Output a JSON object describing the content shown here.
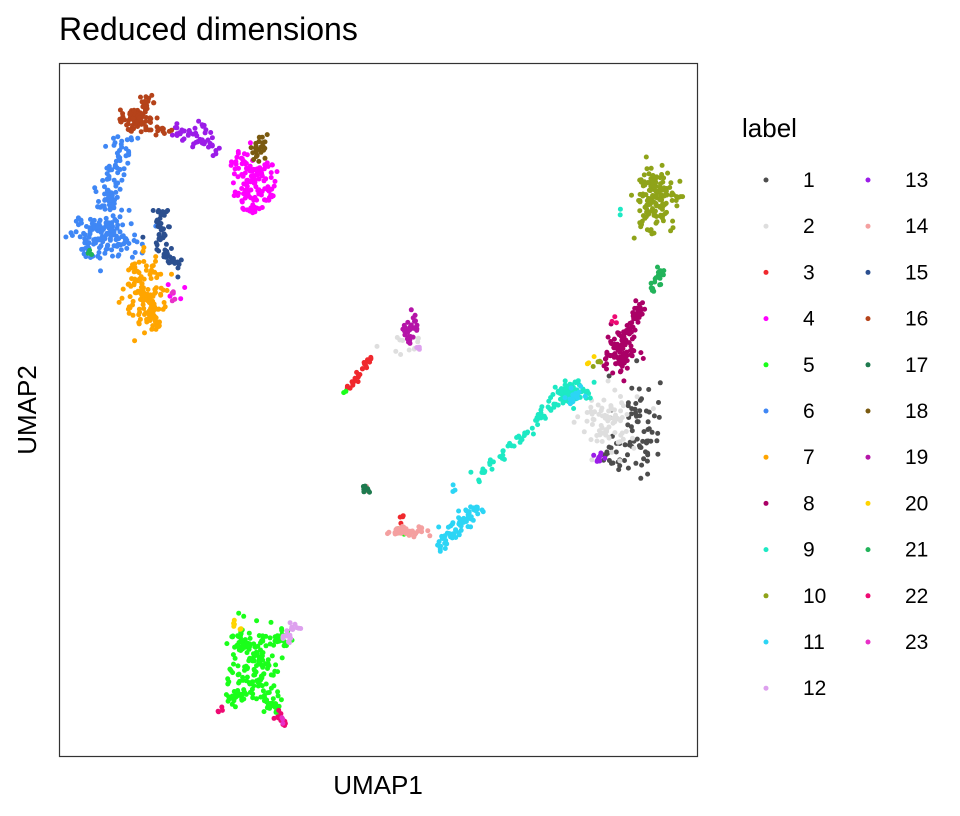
{
  "chart_data": {
    "type": "scatter",
    "title": "Reduced dimensions",
    "xlabel": "UMAP1",
    "ylabel": "UMAP2",
    "xlim": [
      0,
      100
    ],
    "ylim": [
      0,
      100
    ],
    "x_ticks_shown": false,
    "y_ticks_shown": false,
    "grid": false,
    "legend_title": "label",
    "legend_position": "right",
    "point_size": "small",
    "series": [
      {
        "name": "1",
        "color": "#4d4d4d",
        "clusters": [
          {
            "cx": 90.5,
            "cy": 47.5,
            "sx": 1.8,
            "sy": 3.8,
            "n": 70
          },
          {
            "cx": 86.5,
            "cy": 43.5,
            "sx": 1.0,
            "sy": 1.5,
            "n": 15
          }
        ]
      },
      {
        "name": "2",
        "color": "#dedede",
        "clusters": [
          {
            "cx": 86.0,
            "cy": 48.5,
            "sx": 2.2,
            "sy": 2.2,
            "n": 80
          },
          {
            "cx": 54.0,
            "cy": 59.5,
            "sx": 1.5,
            "sy": 0.8,
            "n": 12
          }
        ]
      },
      {
        "name": "3",
        "color": "#f0282d",
        "clusters": [
          {
            "x1": 45.0,
            "y1": 53.0,
            "x2": 49.0,
            "y2": 57.5,
            "w": 0.4,
            "n": 25
          },
          {
            "cx": 54.0,
            "cy": 34.0,
            "sx": 0.6,
            "sy": 0.6,
            "n": 4
          }
        ]
      },
      {
        "name": "4",
        "color": "#ff00ff",
        "clusters": [
          {
            "x1": 27.0,
            "y1": 86.0,
            "x2": 34.0,
            "y2": 83.0,
            "w": 1.2,
            "n": 80
          },
          {
            "x1": 29.0,
            "y1": 83.0,
            "x2": 31.5,
            "y2": 79.0,
            "w": 1.3,
            "n": 60
          },
          {
            "cx": 18.0,
            "cy": 67.0,
            "sx": 0.7,
            "sy": 0.7,
            "n": 5
          }
        ]
      },
      {
        "name": "5",
        "color": "#1aff1a",
        "clusters": [
          {
            "cx": 30.5,
            "cy": 13.0,
            "sx": 1.8,
            "sy": 2.8,
            "n": 140
          },
          {
            "x1": 27.5,
            "y1": 18.0,
            "x2": 30.0,
            "y2": 15.5,
            "w": 0.6,
            "n": 25
          },
          {
            "x1": 33.0,
            "y1": 16.0,
            "x2": 36.0,
            "y2": 18.0,
            "w": 0.6,
            "n": 20
          },
          {
            "x1": 29.0,
            "y1": 9.5,
            "x2": 26.0,
            "y2": 7.5,
            "w": 0.6,
            "n": 25
          },
          {
            "x1": 32.0,
            "y1": 9.5,
            "x2": 34.0,
            "y2": 6.0,
            "w": 0.6,
            "n": 25
          },
          {
            "cx": 53.5,
            "cy": 32.2,
            "sx": 0.4,
            "sy": 0.4,
            "n": 3
          },
          {
            "cx": 45.0,
            "cy": 52.5,
            "sx": 0.3,
            "sy": 0.3,
            "n": 2
          }
        ]
      },
      {
        "name": "6",
        "color": "#3f87f5",
        "clusters": [
          {
            "cx": 7.0,
            "cy": 75.0,
            "sx": 2.8,
            "sy": 1.5,
            "n": 140
          },
          {
            "x1": 7.0,
            "y1": 79.0,
            "x2": 9.5,
            "y2": 88.0,
            "w": 1.0,
            "n": 80
          },
          {
            "cx": 10.0,
            "cy": 89.0,
            "sx": 0.8,
            "sy": 0.8,
            "n": 10
          }
        ]
      },
      {
        "name": "7",
        "color": "#ffa500",
        "clusters": [
          {
            "cx": 13.5,
            "cy": 67.0,
            "sx": 1.8,
            "sy": 2.5,
            "n": 130
          },
          {
            "x1": 14.0,
            "y1": 65.0,
            "x2": 14.8,
            "y2": 61.5,
            "w": 0.4,
            "n": 20
          }
        ]
      },
      {
        "name": "8",
        "color": "#aa0066",
        "clusters": [
          {
            "cx": 88.0,
            "cy": 58.5,
            "sx": 1.2,
            "sy": 1.6,
            "n": 100
          },
          {
            "x1": 89.0,
            "y1": 61.0,
            "x2": 91.5,
            "y2": 65.5,
            "w": 0.5,
            "n": 35
          }
        ]
      },
      {
        "name": "9",
        "color": "#1de9c4",
        "clusters": [
          {
            "cx": 80.0,
            "cy": 52.5,
            "sx": 1.3,
            "sy": 0.8,
            "n": 70
          },
          {
            "x1": 78.0,
            "y1": 51.0,
            "x2": 65.0,
            "y2": 40.0,
            "w": 0.5,
            "n": 55
          },
          {
            "cx": 88.0,
            "cy": 78.5,
            "sx": 0.3,
            "sy": 0.3,
            "n": 2
          }
        ]
      },
      {
        "name": "10",
        "color": "#8fa319",
        "clusters": [
          {
            "cx": 93.5,
            "cy": 80.5,
            "sx": 1.6,
            "sy": 2.3,
            "n": 150
          },
          {
            "cx": 84.0,
            "cy": 57.0,
            "sx": 0.5,
            "sy": 0.5,
            "n": 4
          }
        ]
      },
      {
        "name": "11",
        "color": "#2cd5f5",
        "clusters": [
          {
            "x1": 61.5,
            "y1": 38.5,
            "x2": 62.0,
            "y2": 38.5,
            "w": 0.4,
            "n": 3
          },
          {
            "x1": 66.0,
            "y1": 36.0,
            "x2": 59.0,
            "y2": 30.0,
            "w": 0.6,
            "n": 70
          },
          {
            "cx": 81.0,
            "cy": 52.0,
            "sx": 0.8,
            "sy": 0.6,
            "n": 15
          }
        ]
      },
      {
        "name": "12",
        "color": "#dda0ee",
        "clusters": [
          {
            "x1": 35.0,
            "y1": 17.0,
            "x2": 37.5,
            "y2": 19.0,
            "w": 0.5,
            "n": 20
          },
          {
            "cx": 56.0,
            "cy": 59.0,
            "sx": 0.4,
            "sy": 0.3,
            "n": 4
          }
        ]
      },
      {
        "name": "13",
        "color": "#9b1ce8",
        "clusters": [
          {
            "x1": 18.0,
            "y1": 90.5,
            "x2": 25.0,
            "y2": 87.5,
            "w": 0.6,
            "n": 40
          },
          {
            "cx": 22.5,
            "cy": 91.0,
            "sx": 0.6,
            "sy": 0.6,
            "n": 8
          },
          {
            "cx": 84.5,
            "cy": 43.0,
            "sx": 0.6,
            "sy": 0.5,
            "n": 12
          }
        ]
      },
      {
        "name": "14",
        "color": "#f4a0a0",
        "clusters": [
          {
            "cx": 54.5,
            "cy": 32.5,
            "sx": 1.5,
            "sy": 0.4,
            "n": 40
          },
          {
            "cx": 48.0,
            "cy": 38.5,
            "sx": 0.3,
            "sy": 0.3,
            "n": 3
          }
        ]
      },
      {
        "name": "15",
        "color": "#2b4f8f",
        "clusters": [
          {
            "x1": 15.5,
            "y1": 79.0,
            "x2": 17.0,
            "y2": 71.0,
            "w": 0.8,
            "n": 50
          },
          {
            "cx": 18.0,
            "cy": 71.0,
            "sx": 0.6,
            "sy": 0.8,
            "n": 10
          }
        ]
      },
      {
        "name": "16",
        "color": "#b5431a",
        "clusters": [
          {
            "cx": 12.0,
            "cy": 92.0,
            "sx": 1.2,
            "sy": 1.0,
            "n": 70
          },
          {
            "x1": 13.0,
            "y1": 93.5,
            "x2": 14.5,
            "y2": 95.5,
            "w": 0.5,
            "n": 20
          },
          {
            "x1": 13.5,
            "y1": 90.5,
            "x2": 18.0,
            "y2": 90.5,
            "w": 0.3,
            "n": 12
          }
        ]
      },
      {
        "name": "17",
        "color": "#1f7a4f",
        "clusters": [
          {
            "x1": 47.5,
            "y1": 39.0,
            "x2": 48.5,
            "y2": 38.0,
            "w": 0.3,
            "n": 8
          }
        ]
      },
      {
        "name": "18",
        "color": "#7a5a10",
        "clusters": [
          {
            "cx": 31.0,
            "cy": 87.5,
            "sx": 0.8,
            "sy": 1.0,
            "n": 25
          }
        ]
      },
      {
        "name": "19",
        "color": "#b515a8",
        "clusters": [
          {
            "cx": 55.0,
            "cy": 62.0,
            "sx": 0.6,
            "sy": 1.0,
            "n": 35
          }
        ]
      },
      {
        "name": "20",
        "color": "#ffd400",
        "clusters": [
          {
            "x1": 27.0,
            "y1": 19.5,
            "x2": 28.5,
            "y2": 18.0,
            "w": 0.3,
            "n": 6
          },
          {
            "cx": 83.0,
            "cy": 57.0,
            "sx": 0.4,
            "sy": 0.4,
            "n": 3
          }
        ]
      },
      {
        "name": "21",
        "color": "#22b35a",
        "clusters": [
          {
            "x1": 93.0,
            "y1": 67.0,
            "x2": 94.5,
            "y2": 70.5,
            "w": 0.4,
            "n": 22
          },
          {
            "cx": 5.0,
            "cy": 72.5,
            "sx": 0.4,
            "sy": 0.4,
            "n": 3
          }
        ]
      },
      {
        "name": "22",
        "color": "#ee0a73",
        "clusters": [
          {
            "x1": 34.0,
            "y1": 6.5,
            "x2": 35.5,
            "y2": 4.5,
            "w": 0.4,
            "n": 12
          },
          {
            "cx": 25.0,
            "cy": 7.0,
            "sx": 0.4,
            "sy": 0.3,
            "n": 4
          },
          {
            "cx": 87.0,
            "cy": 62.5,
            "sx": 0.4,
            "sy": 0.4,
            "n": 3
          }
        ]
      },
      {
        "name": "23",
        "color": "#e830c8",
        "clusters": [
          {
            "cx": 18.0,
            "cy": 66.5,
            "sx": 0.4,
            "sy": 0.4,
            "n": 4
          },
          {
            "cx": 35.0,
            "cy": 5.0,
            "sx": 0.3,
            "sy": 0.3,
            "n": 3
          }
        ]
      }
    ]
  }
}
